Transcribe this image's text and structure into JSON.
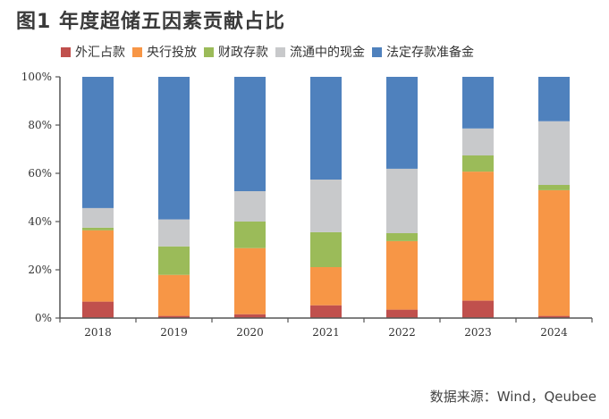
{
  "title": "图1  年度超储五因素贡献占比",
  "source": "数据来源：Wind，Qeubee",
  "chart_data": {
    "type": "bar",
    "stacked": true,
    "title": "图1  年度超储五因素贡献占比",
    "xlabel": "",
    "ylabel": "",
    "ylim": [
      0,
      100
    ],
    "yticks": [
      "0%",
      "20%",
      "40%",
      "60%",
      "80%",
      "100%"
    ],
    "legend_position": "top",
    "grid": false,
    "categories": [
      "2018",
      "2019",
      "2020",
      "2021",
      "2022",
      "2023",
      "2024"
    ],
    "series": [
      {
        "name": "外汇占款",
        "color": "#c0504d",
        "values": [
          6.8,
          0.9,
          1.6,
          5.3,
          3.5,
          7.2,
          0.9
        ]
      },
      {
        "name": "央行投放",
        "color": "#f79646",
        "values": [
          29.6,
          17.0,
          27.4,
          15.8,
          28.4,
          53.5,
          52.1
        ]
      },
      {
        "name": "财政存款",
        "color": "#9bbb59",
        "values": [
          1.1,
          11.8,
          11.0,
          14.5,
          3.3,
          6.7,
          2.2
        ]
      },
      {
        "name": "流通中的现金",
        "color": "#c8c9cb",
        "values": [
          8.1,
          11.2,
          12.6,
          21.8,
          26.7,
          11.2,
          26.4
        ]
      },
      {
        "name": "法定存款准备金",
        "color": "#4f81bd",
        "values": [
          54.4,
          59.1,
          47.4,
          42.6,
          38.1,
          21.4,
          18.4
        ]
      }
    ]
  }
}
